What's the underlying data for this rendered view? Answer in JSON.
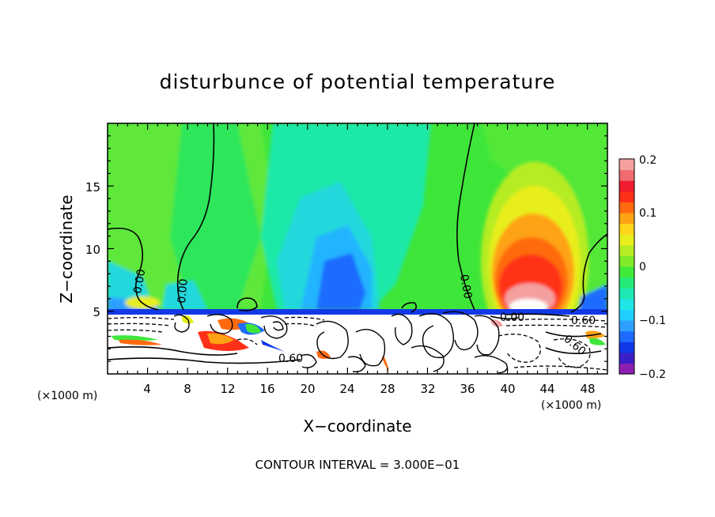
{
  "chart_data": {
    "type": "heatmap",
    "title": "disturbunce of potential temperature",
    "xlabel": "X−coordinate",
    "ylabel": "Z−coordinate",
    "x_unit_left": "(×1000 m)",
    "x_unit_right": "(×1000 m)",
    "xlim": [
      0,
      50
    ],
    "ylim": [
      0,
      20
    ],
    "x_ticks": [
      "4",
      "8",
      "12",
      "16",
      "20",
      "24",
      "28",
      "32",
      "36",
      "40",
      "44",
      "48"
    ],
    "y_ticks": [
      "5",
      "10",
      "15"
    ],
    "colorbar": {
      "range": [
        -0.2,
        0.2
      ],
      "tick_labels": [
        "0.2",
        "0.1",
        "0",
        "−0.1",
        "−0.2"
      ],
      "colors": [
        "#8b1fb0",
        "#3a1fc8",
        "#1238e8",
        "#1e6cff",
        "#2fa0ff",
        "#20cfff",
        "#20e6e6",
        "#1ee8b4",
        "#24ea78",
        "#40ea3a",
        "#7eea2a",
        "#b6ec22",
        "#e8ee1c",
        "#ffd51a",
        "#ffa314",
        "#ff6a10",
        "#ff3018",
        "#f01c30",
        "#f06a70",
        "#f4a0a0"
      ]
    },
    "contour_labels": [
      "0.00",
      "0.00",
      "0.00",
      "0.00",
      "0.60",
      "0.60",
      "0.60"
    ],
    "annotation": "CONTOUR INTERVAL = 3.000E−01"
  }
}
